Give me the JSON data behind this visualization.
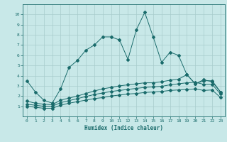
{
  "xlabel": "Humidex (Indice chaleur)",
  "xlim": [
    -0.5,
    23.5
  ],
  "ylim": [
    0,
    11
  ],
  "yticks": [
    1,
    2,
    3,
    4,
    5,
    6,
    7,
    8,
    9,
    10
  ],
  "xticks": [
    0,
    1,
    2,
    3,
    4,
    5,
    6,
    7,
    8,
    9,
    10,
    11,
    12,
    13,
    14,
    15,
    16,
    17,
    18,
    19,
    20,
    21,
    22,
    23
  ],
  "background_color": "#c8e8e8",
  "line_color": "#1a6b6b",
  "grid_color": "#a8cccc",
  "line1_x": [
    0,
    1,
    2,
    3,
    4,
    5,
    6,
    7,
    8,
    9,
    10,
    11,
    12,
    13,
    14,
    15,
    16,
    17,
    18,
    19,
    20,
    21,
    22,
    23
  ],
  "line1_y": [
    3.5,
    2.4,
    1.6,
    1.3,
    2.7,
    4.8,
    5.5,
    6.5,
    7.0,
    7.8,
    7.8,
    7.5,
    5.6,
    8.5,
    10.2,
    7.8,
    5.3,
    6.3,
    6.0,
    4.1,
    3.2,
    3.6,
    3.4,
    2.4
  ],
  "line2_x": [
    0,
    1,
    2,
    3,
    4,
    5,
    6,
    7,
    8,
    9,
    10,
    11,
    12,
    13,
    14,
    15,
    16,
    17,
    18,
    19,
    20,
    21,
    22,
    23
  ],
  "line2_y": [
    1.5,
    1.3,
    1.2,
    1.15,
    1.6,
    1.8,
    2.0,
    2.25,
    2.5,
    2.7,
    2.85,
    3.0,
    3.1,
    3.2,
    3.3,
    3.3,
    3.4,
    3.55,
    3.65,
    4.1,
    3.2,
    3.5,
    3.5,
    2.4
  ],
  "line3_x": [
    0,
    1,
    2,
    3,
    4,
    5,
    6,
    7,
    8,
    9,
    10,
    11,
    12,
    13,
    14,
    15,
    16,
    17,
    18,
    19,
    20,
    21,
    22,
    23
  ],
  "line3_y": [
    1.2,
    1.1,
    1.0,
    1.0,
    1.35,
    1.55,
    1.75,
    1.95,
    2.15,
    2.3,
    2.45,
    2.55,
    2.65,
    2.75,
    2.85,
    2.9,
    2.95,
    3.1,
    3.2,
    3.3,
    3.35,
    3.15,
    3.15,
    2.2
  ],
  "line4_x": [
    0,
    1,
    2,
    3,
    4,
    5,
    6,
    7,
    8,
    9,
    10,
    11,
    12,
    13,
    14,
    15,
    16,
    17,
    18,
    19,
    20,
    21,
    22,
    23
  ],
  "line4_y": [
    1.0,
    0.9,
    0.8,
    0.8,
    1.1,
    1.3,
    1.45,
    1.6,
    1.75,
    1.85,
    2.0,
    2.1,
    2.2,
    2.25,
    2.35,
    2.4,
    2.45,
    2.55,
    2.6,
    2.65,
    2.7,
    2.55,
    2.6,
    1.85
  ]
}
